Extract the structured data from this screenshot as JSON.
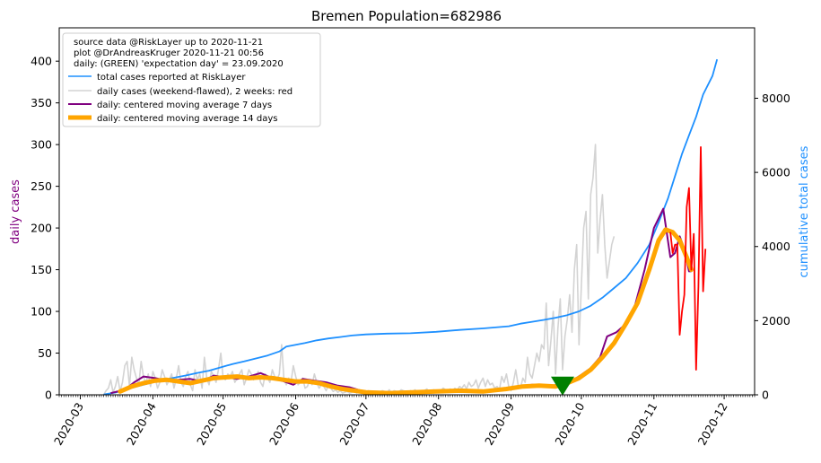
{
  "chart_data": {
    "type": "line",
    "title": "Bremen Population=682986",
    "ylabel_left": "daily cases",
    "ylabel_right": "cumulative total cases",
    "colors": {
      "left_axis_label": "#800080",
      "right_axis_label": "#1E90FF",
      "total": "#1E90FF",
      "daily": "#D3D3D3",
      "daily_recent": "#FF0000",
      "ma7": "#800080",
      "ma14": "#FFA500",
      "expectation": "#008000"
    },
    "y_left": {
      "range": [
        0,
        440
      ],
      "ticks": [
        0,
        50,
        100,
        150,
        200,
        250,
        300,
        350,
        400
      ]
    },
    "y_right": {
      "range": [
        0,
        9900
      ],
      "ticks": [
        0,
        2000,
        4000,
        6000,
        8000
      ]
    },
    "x_axis": {
      "range": [
        "2020-02-21",
        "2020-12-14"
      ],
      "ticks": [
        {
          "date": "2020-03-01",
          "label": "2020-03"
        },
        {
          "date": "2020-04-01",
          "label": "2020-04"
        },
        {
          "date": "2020-05-01",
          "label": "2020-05"
        },
        {
          "date": "2020-06-01",
          "label": "2020-06"
        },
        {
          "date": "2020-07-01",
          "label": "2020-07"
        },
        {
          "date": "2020-08-01",
          "label": "2020-08"
        },
        {
          "date": "2020-09-01",
          "label": "2020-09"
        },
        {
          "date": "2020-10-01",
          "label": "2020-10"
        },
        {
          "date": "2020-11-01",
          "label": "2020-11"
        },
        {
          "date": "2020-12-01",
          "label": "2020-12"
        }
      ]
    },
    "legend": {
      "placement": "top-left",
      "header": [
        "source data @RiskLayer up to 2020-11-21",
        "plot @DrAndreasKruger 2020-11-21 00:56",
        "daily: (GREEN) 'expectation day' = 23.09.2020"
      ],
      "entries": [
        {
          "label": "total cases reported at RiskLayer",
          "series": "total"
        },
        {
          "label": "daily cases (weekend-flawed), 2 weeks: red",
          "series": "daily"
        },
        {
          "label": "daily: centered moving average 7 days",
          "series": "ma7"
        },
        {
          "label": "daily: centered moving average 14 days",
          "series": "ma14"
        }
      ]
    },
    "expectation_marker": {
      "date": "2020-09-23",
      "value": 12
    },
    "series": {
      "total": {
        "axis": "right",
        "points": [
          [
            "2020-03-11",
            10
          ],
          [
            "2020-03-16",
            60
          ],
          [
            "2020-03-21",
            150
          ],
          [
            "2020-03-26",
            240
          ],
          [
            "2020-03-31",
            320
          ],
          [
            "2020-04-05",
            400
          ],
          [
            "2020-04-10",
            460
          ],
          [
            "2020-04-15",
            520
          ],
          [
            "2020-04-20",
            590
          ],
          [
            "2020-04-25",
            650
          ],
          [
            "2020-04-30",
            740
          ],
          [
            "2020-05-05",
            830
          ],
          [
            "2020-05-10",
            900
          ],
          [
            "2020-05-15",
            980
          ],
          [
            "2020-05-20",
            1060
          ],
          [
            "2020-05-25",
            1170
          ],
          [
            "2020-05-28",
            1300
          ],
          [
            "2020-06-01",
            1350
          ],
          [
            "2020-06-05",
            1400
          ],
          [
            "2020-06-10",
            1470
          ],
          [
            "2020-06-15",
            1520
          ],
          [
            "2020-06-20",
            1560
          ],
          [
            "2020-06-25",
            1600
          ],
          [
            "2020-07-01",
            1630
          ],
          [
            "2020-07-10",
            1650
          ],
          [
            "2020-07-20",
            1660
          ],
          [
            "2020-07-31",
            1700
          ],
          [
            "2020-08-10",
            1750
          ],
          [
            "2020-08-20",
            1790
          ],
          [
            "2020-08-31",
            1850
          ],
          [
            "2020-09-05",
            1920
          ],
          [
            "2020-09-10",
            1970
          ],
          [
            "2020-09-15",
            2020
          ],
          [
            "2020-09-20",
            2080
          ],
          [
            "2020-09-25",
            2150
          ],
          [
            "2020-09-30",
            2250
          ],
          [
            "2020-10-05",
            2400
          ],
          [
            "2020-10-10",
            2620
          ],
          [
            "2020-10-15",
            2880
          ],
          [
            "2020-10-20",
            3150
          ],
          [
            "2020-10-25",
            3550
          ],
          [
            "2020-10-30",
            4050
          ],
          [
            "2020-11-03",
            4650
          ],
          [
            "2020-11-07",
            5300
          ],
          [
            "2020-11-10",
            5900
          ],
          [
            "2020-11-13",
            6500
          ],
          [
            "2020-11-16",
            7000
          ],
          [
            "2020-11-19",
            7500
          ],
          [
            "2020-11-22",
            8100
          ],
          [
            "2020-11-26",
            8600
          ],
          [
            "2020-11-28",
            9050
          ]
        ]
      },
      "daily": {
        "axis": "left",
        "start": "2020-03-11",
        "values": [
          0,
          5,
          8,
          18,
          3,
          10,
          22,
          4,
          15,
          35,
          40,
          10,
          45,
          30,
          20,
          12,
          40,
          22,
          14,
          25,
          10,
          28,
          20,
          8,
          15,
          30,
          22,
          12,
          18,
          25,
          8,
          20,
          35,
          15,
          10,
          22,
          28,
          12,
          5,
          30,
          18,
          25,
          8,
          45,
          20,
          12,
          28,
          22,
          15,
          30,
          50,
          20,
          18,
          25,
          22,
          28,
          15,
          20,
          25,
          30,
          12,
          20,
          30,
          25,
          18,
          22,
          28,
          15,
          10,
          25,
          20,
          15,
          30,
          22,
          18,
          25,
          60,
          18,
          12,
          20,
          15,
          35,
          22,
          12,
          15,
          20,
          8,
          10,
          18,
          12,
          25,
          15,
          8,
          12,
          10,
          5,
          12,
          8,
          4,
          6,
          3,
          5,
          2,
          3,
          4,
          2,
          3,
          5,
          2,
          4,
          3,
          2,
          3,
          5,
          4,
          3,
          2,
          4,
          3,
          5,
          4,
          3,
          6,
          2,
          5,
          4,
          3,
          6,
          5,
          4,
          3,
          5,
          4,
          6,
          3,
          5,
          4,
          5,
          7,
          3,
          5,
          6,
          4,
          3,
          5,
          8,
          6,
          4,
          7,
          5,
          8,
          6,
          10,
          8,
          12,
          7,
          15,
          10,
          12,
          18,
          8,
          15,
          20,
          10,
          18,
          12,
          14,
          8,
          10,
          6,
          22,
          15,
          25,
          10,
          5,
          15,
          30,
          12,
          8,
          20,
          15,
          45,
          25,
          20,
          35,
          50,
          40,
          60,
          55,
          110,
          35,
          65,
          100,
          25,
          80,
          115,
          30,
          70,
          90,
          120,
          75,
          150,
          180,
          60,
          130,
          200,
          220,
          115,
          240,
          260,
          300,
          170,
          210,
          240,
          180,
          140,
          160,
          180,
          190
        ]
      },
      "daily_recent": {
        "axis": "left",
        "points": [
          [
            "2020-11-08",
            195
          ],
          [
            "2020-11-09",
            170
          ],
          [
            "2020-11-10",
            180
          ],
          [
            "2020-11-11",
            180
          ],
          [
            "2020-11-12",
            72
          ],
          [
            "2020-11-13",
            100
          ],
          [
            "2020-11-14",
            120
          ],
          [
            "2020-11-15",
            225
          ],
          [
            "2020-11-16",
            248
          ],
          [
            "2020-11-17",
            150
          ],
          [
            "2020-11-18",
            193
          ],
          [
            "2020-11-19",
            30
          ],
          [
            "2020-11-20",
            130
          ],
          [
            "2020-11-21",
            297
          ],
          [
            "2020-11-22",
            124
          ],
          [
            "2020-11-23",
            175
          ]
        ]
      },
      "ma7": {
        "axis": "left",
        "points": [
          [
            "2020-03-14",
            2
          ],
          [
            "2020-03-20",
            6
          ],
          [
            "2020-03-24",
            15
          ],
          [
            "2020-03-28",
            22
          ],
          [
            "2020-04-02",
            20
          ],
          [
            "2020-04-07",
            17
          ],
          [
            "2020-04-12",
            18
          ],
          [
            "2020-04-17",
            19
          ],
          [
            "2020-04-22",
            16
          ],
          [
            "2020-04-27",
            23
          ],
          [
            "2020-05-02",
            21
          ],
          [
            "2020-05-07",
            19
          ],
          [
            "2020-05-12",
            22
          ],
          [
            "2020-05-17",
            26
          ],
          [
            "2020-05-22",
            20
          ],
          [
            "2020-05-27",
            16
          ],
          [
            "2020-05-31",
            12
          ],
          [
            "2020-06-04",
            19
          ],
          [
            "2020-06-09",
            17
          ],
          [
            "2020-06-14",
            15
          ],
          [
            "2020-06-19",
            11
          ],
          [
            "2020-06-24",
            9
          ],
          [
            "2020-06-29",
            5
          ],
          [
            "2020-07-04",
            3
          ],
          [
            "2020-07-14",
            2
          ],
          [
            "2020-07-24",
            3
          ],
          [
            "2020-08-03",
            4
          ],
          [
            "2020-08-13",
            4
          ],
          [
            "2020-08-23",
            5
          ],
          [
            "2020-09-02",
            9
          ],
          [
            "2020-09-10",
            12
          ],
          [
            "2020-09-18",
            11
          ],
          [
            "2020-09-25",
            13
          ],
          [
            "2020-10-01",
            24
          ],
          [
            "2020-10-05",
            32
          ],
          [
            "2020-10-09",
            45
          ],
          [
            "2020-10-12",
            70
          ],
          [
            "2020-10-16",
            75
          ],
          [
            "2020-10-20",
            85
          ],
          [
            "2020-10-24",
            108
          ],
          [
            "2020-10-28",
            150
          ],
          [
            "2020-11-01",
            200
          ],
          [
            "2020-11-05",
            223
          ],
          [
            "2020-11-08",
            165
          ],
          [
            "2020-11-10",
            170
          ],
          [
            "2020-11-12",
            190
          ],
          [
            "2020-11-14",
            175
          ],
          [
            "2020-11-16",
            148
          ],
          [
            "2020-11-17",
            148
          ]
        ]
      },
      "ma14": {
        "axis": "left",
        "points": [
          [
            "2020-03-18",
            4
          ],
          [
            "2020-03-23",
            10
          ],
          [
            "2020-03-28",
            14
          ],
          [
            "2020-04-02",
            17
          ],
          [
            "2020-04-07",
            18
          ],
          [
            "2020-04-12",
            16
          ],
          [
            "2020-04-17",
            14
          ],
          [
            "2020-04-22",
            17
          ],
          [
            "2020-04-27",
            20
          ],
          [
            "2020-05-02",
            21
          ],
          [
            "2020-05-07",
            22
          ],
          [
            "2020-05-12",
            20
          ],
          [
            "2020-05-17",
            21
          ],
          [
            "2020-05-22",
            20
          ],
          [
            "2020-05-27",
            18
          ],
          [
            "2020-06-01",
            16
          ],
          [
            "2020-06-06",
            16
          ],
          [
            "2020-06-11",
            14
          ],
          [
            "2020-06-16",
            10
          ],
          [
            "2020-06-21",
            7
          ],
          [
            "2020-06-26",
            5
          ],
          [
            "2020-07-01",
            3
          ],
          [
            "2020-07-11",
            2
          ],
          [
            "2020-07-21",
            3
          ],
          [
            "2020-07-31",
            4
          ],
          [
            "2020-08-10",
            5
          ],
          [
            "2020-08-20",
            4
          ],
          [
            "2020-08-30",
            7
          ],
          [
            "2020-09-06",
            10
          ],
          [
            "2020-09-13",
            11
          ],
          [
            "2020-09-20",
            10
          ],
          [
            "2020-09-25",
            14
          ],
          [
            "2020-09-30",
            20
          ],
          [
            "2020-10-05",
            30
          ],
          [
            "2020-10-10",
            45
          ],
          [
            "2020-10-15",
            62
          ],
          [
            "2020-10-20",
            85
          ],
          [
            "2020-10-25",
            110
          ],
          [
            "2020-10-30",
            150
          ],
          [
            "2020-11-03",
            185
          ],
          [
            "2020-11-06",
            198
          ],
          [
            "2020-11-09",
            195
          ],
          [
            "2020-11-12",
            185
          ],
          [
            "2020-11-15",
            165
          ],
          [
            "2020-11-17",
            150
          ]
        ]
      }
    }
  }
}
